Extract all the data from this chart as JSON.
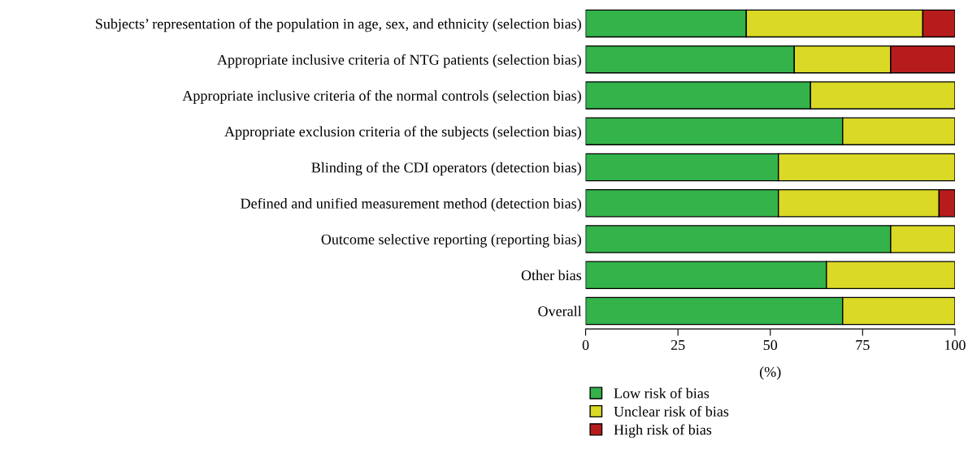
{
  "chart_data": {
    "type": "bar",
    "orientation": "horizontal",
    "stacked": true,
    "xlabel": "(%)",
    "categories": [
      "Subjects’ representation of the population in age, sex, and ethnicity (selection bias)",
      "Appropriate inclusive criteria of NTG patients (selection bias)",
      "Appropriate inclusive criteria of the normal controls (selection bias)",
      "Appropriate exclusion criteria of the subjects (selection bias)",
      "Blinding of the CDI operators (detection bias)",
      "Defined and unified measurement method (detection bias)",
      "Outcome selective reporting (reporting bias)",
      "Other bias",
      "Overall"
    ],
    "series": [
      {
        "name": "Low risk of bias",
        "color": "#33b34a",
        "values": [
          43.5,
          56.5,
          60.9,
          69.6,
          52.2,
          52.2,
          82.6,
          65.2,
          69.6
        ]
      },
      {
        "name": "Unclear risk of bias",
        "color": "#d9d926",
        "values": [
          47.8,
          26.1,
          39.1,
          30.4,
          47.8,
          43.5,
          17.4,
          34.8,
          30.4
        ]
      },
      {
        "name": "High risk of bias",
        "color": "#b71c1c",
        "values": [
          8.7,
          17.4,
          0,
          0,
          0,
          4.3,
          0,
          0,
          0
        ]
      }
    ],
    "xlim": [
      0,
      100
    ],
    "xticks": [
      0,
      25,
      50,
      75,
      100
    ],
    "grid": false,
    "legend": "bottom"
  }
}
